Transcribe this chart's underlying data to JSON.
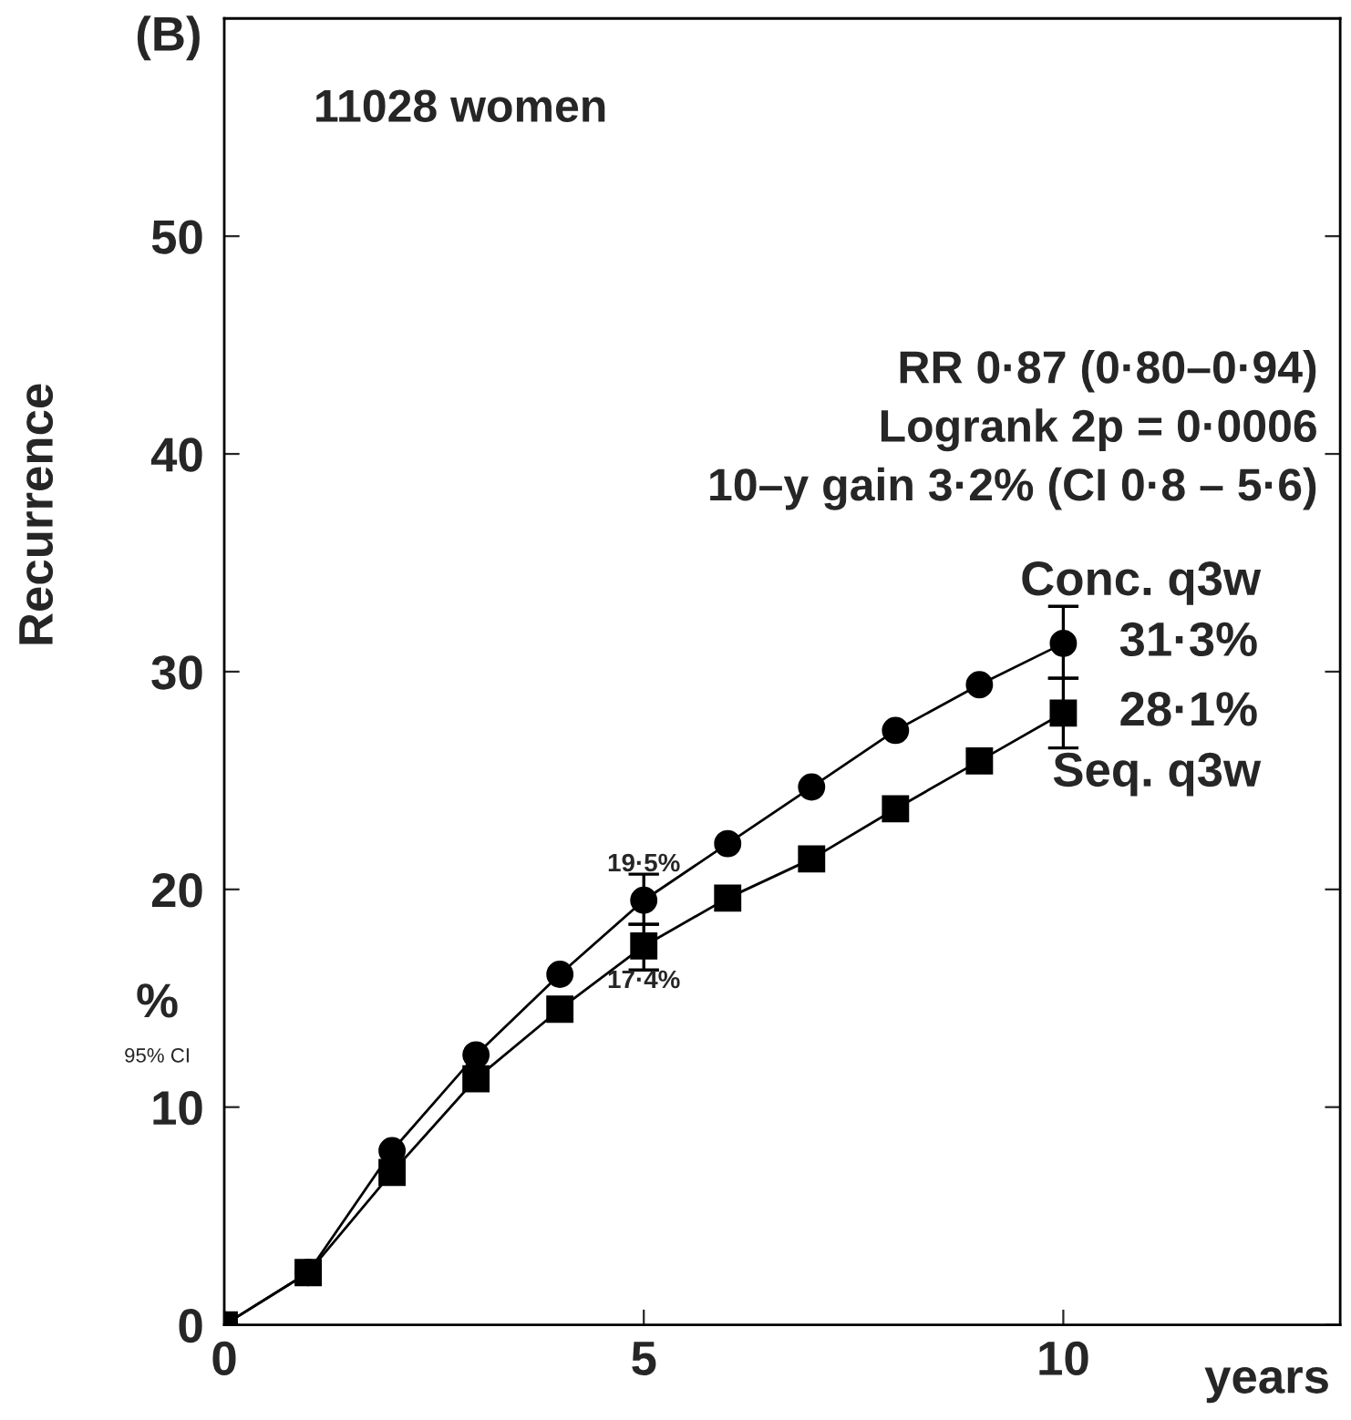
{
  "chart_data": {
    "type": "line",
    "ylabel": "Recurrence",
    "xlabel": "years",
    "x": [
      0,
      1,
      2,
      3,
      4,
      5,
      6,
      7,
      8,
      9,
      10
    ],
    "series": [
      {
        "name": "Conc. q3w",
        "color": "#000000",
        "marker": "circle",
        "values": [
          0,
          2.4,
          8.0,
          12.4,
          16.1,
          19.5,
          22.1,
          24.7,
          27.3,
          29.4,
          31.3
        ],
        "errors": [
          null,
          null,
          null,
          null,
          null,
          [
            18.4,
            20.7
          ],
          null,
          null,
          null,
          null,
          [
            29.7,
            33.0
          ]
        ],
        "value_labels": [
          null,
          null,
          null,
          null,
          null,
          "19·5%",
          null,
          null,
          null,
          null,
          "31·3%"
        ]
      },
      {
        "name": "Seq. q3w",
        "color": "#000000",
        "marker": "square",
        "values": [
          0,
          2.4,
          7.0,
          11.3,
          14.5,
          17.4,
          19.6,
          21.4,
          23.7,
          25.9,
          28.1
        ],
        "errors": [
          null,
          null,
          null,
          null,
          null,
          [
            16.3,
            18.4
          ],
          null,
          null,
          null,
          null,
          [
            26.5,
            29.7
          ]
        ],
        "value_labels": [
          null,
          null,
          null,
          null,
          null,
          "17·4%",
          null,
          null,
          null,
          null,
          "28·1%"
        ]
      }
    ],
    "xlim": [
      0,
      13.3
    ],
    "ylim": [
      0,
      60
    ],
    "xticks": [
      0,
      5,
      10
    ],
    "yticks": [
      0,
      10,
      20,
      30,
      40,
      50
    ],
    "line_style": "solid",
    "grid": false,
    "legend": false,
    "annotations": [
      "(B)",
      "11028 women",
      "RR 0·87 (0·80–0·94)",
      "Logrank 2p = 0·0006",
      "10–y gain 3·2% (CI 0·8 – 5·6)",
      "%",
      "95% CI"
    ]
  }
}
